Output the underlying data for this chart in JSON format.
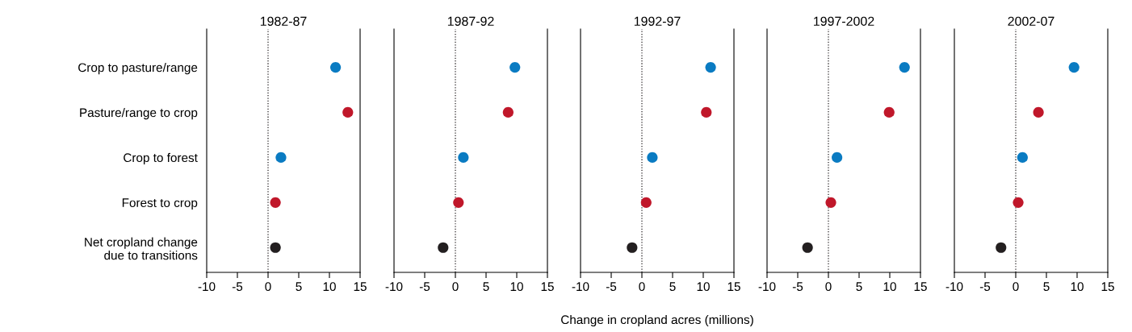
{
  "chart_data": [
    {
      "type": "scatter",
      "orientation": "horizontal",
      "title": "1982-87",
      "categories": [
        "Crop to pasture/range",
        "Pasture/range to crop",
        "Crop to forest",
        "Forest to crop",
        "Net cropland change\ndue to transitions"
      ],
      "values": [
        11.0,
        13.0,
        2.1,
        1.2,
        1.2
      ],
      "colors": [
        "#0a7bc2",
        "#c0172a",
        "#0a7bc2",
        "#c0172a",
        "#231f20"
      ],
      "marker": "circle",
      "xlim": [
        -10,
        15
      ],
      "xticks": [
        -10,
        -5,
        0,
        5,
        10,
        15
      ],
      "ref_lines": [
        {
          "axis": "x",
          "value": 0,
          "line_style": "dotted",
          "color": "#231f20"
        }
      ],
      "grid": false,
      "legend": false
    },
    {
      "type": "scatter",
      "orientation": "horizontal",
      "title": "1987-92",
      "categories": [
        null,
        null,
        null,
        null,
        null
      ],
      "values": [
        9.7,
        8.6,
        1.3,
        0.5,
        -2.0
      ],
      "colors": [
        "#0a7bc2",
        "#c0172a",
        "#0a7bc2",
        "#c0172a",
        "#231f20"
      ],
      "marker": "circle",
      "xlim": [
        -10,
        15
      ],
      "xticks": [
        -10,
        -5,
        0,
        5,
        10,
        15
      ],
      "tick_labels": "x",
      "ref_lines": [
        {
          "axis": "x",
          "value": 0,
          "line_style": "dotted",
          "color": "#231f20"
        }
      ],
      "grid": false,
      "legend": false
    },
    {
      "type": "scatter",
      "orientation": "horizontal",
      "title": "1992-97",
      "xlabel": "Change in cropland acres (millions)",
      "categories": [
        null,
        null,
        null,
        null,
        null
      ],
      "values": [
        11.2,
        10.5,
        1.7,
        0.7,
        -1.6
      ],
      "colors": [
        "#0a7bc2",
        "#c0172a",
        "#0a7bc2",
        "#c0172a",
        "#231f20"
      ],
      "marker": "circle",
      "xlim": [
        -10,
        15
      ],
      "xticks": [
        -10,
        -5,
        0,
        5,
        10,
        15
      ],
      "tick_labels": "x",
      "ref_lines": [
        {
          "axis": "x",
          "value": 0,
          "line_style": "dotted",
          "color": "#231f20"
        }
      ],
      "grid": false,
      "legend": false
    },
    {
      "type": "scatter",
      "orientation": "horizontal",
      "title": "1997-2002",
      "categories": [
        null,
        null,
        null,
        null,
        null
      ],
      "values": [
        12.4,
        9.9,
        1.4,
        0.4,
        -3.4
      ],
      "colors": [
        "#0a7bc2",
        "#c0172a",
        "#0a7bc2",
        "#c0172a",
        "#231f20"
      ],
      "marker": "circle",
      "xlim": [
        -10,
        15
      ],
      "xticks": [
        -10,
        -5,
        0,
        5,
        10,
        15
      ],
      "tick_labels": "x",
      "ref_lines": [
        {
          "axis": "x",
          "value": 0,
          "line_style": "dotted",
          "color": "#231f20"
        }
      ],
      "grid": false,
      "legend": false
    },
    {
      "type": "scatter",
      "orientation": "horizontal",
      "title": "2002-07",
      "categories": [
        null,
        null,
        null,
        null,
        null
      ],
      "values": [
        9.5,
        3.7,
        1.1,
        0.4,
        -2.4
      ],
      "colors": [
        "#0a7bc2",
        "#c0172a",
        "#0a7bc2",
        "#c0172a",
        "#231f20"
      ],
      "marker": "circle",
      "xlim": [
        -10,
        15
      ],
      "xticks": [
        -10,
        -5,
        0,
        5,
        10,
        15
      ],
      "tick_labels": "x",
      "ref_lines": [
        {
          "axis": "x",
          "value": 0,
          "line_style": "dotted",
          "color": "#231f20"
        }
      ],
      "grid": false,
      "legend": false
    }
  ]
}
